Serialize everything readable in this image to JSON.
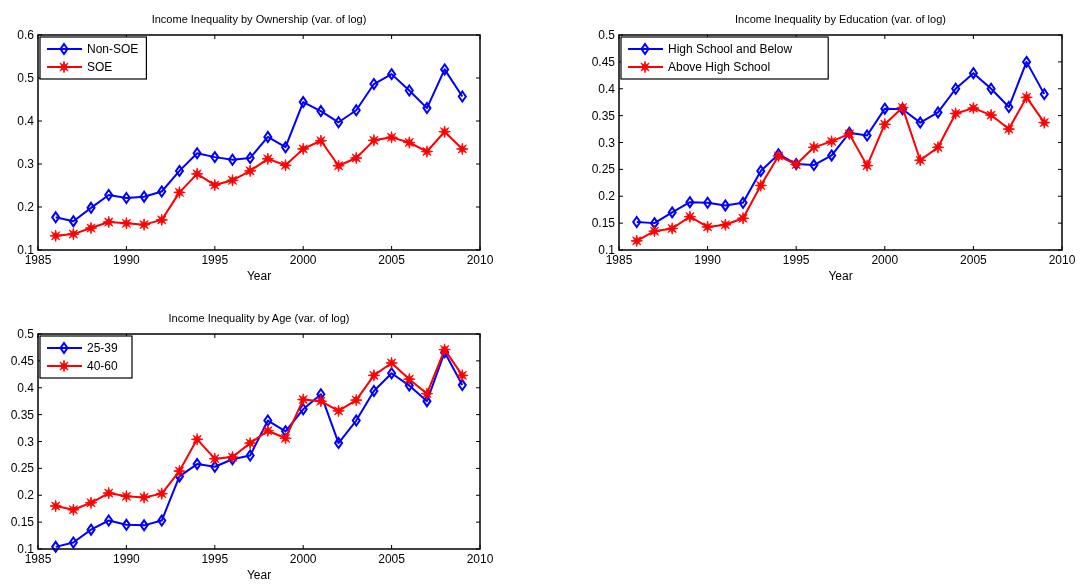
{
  "chart_data": [
    {
      "type": "line",
      "title": "Income Inequality by Ownership (var. of log)",
      "xlabel": "Year",
      "x": [
        1986,
        1987,
        1988,
        1989,
        1990,
        1991,
        1992,
        1993,
        1994,
        1995,
        1996,
        1997,
        1998,
        1999,
        2000,
        2001,
        2002,
        2003,
        2004,
        2005,
        2006,
        2007,
        2008,
        2009
      ],
      "xlim": [
        1985,
        2010
      ],
      "xticks": [
        1985,
        1990,
        1995,
        2000,
        2005,
        2010
      ],
      "ylim": [
        0.1,
        0.6
      ],
      "yticks": [
        0.1,
        0.2,
        0.3,
        0.4,
        0.5,
        0.6
      ],
      "legend": "top left",
      "series": [
        {
          "name": "Non-SOE",
          "color": "#0000ff",
          "marker": "diamond",
          "values": [
            0.176,
            0.167,
            0.198,
            0.228,
            0.221,
            0.224,
            0.236,
            0.284,
            0.325,
            0.316,
            0.31,
            0.314,
            0.363,
            0.339,
            0.444,
            0.423,
            0.397,
            0.425,
            0.486,
            0.509,
            0.471,
            0.43,
            0.52,
            0.457
          ]
        },
        {
          "name": "SOE",
          "color": "#ff0000",
          "marker": "star",
          "values": [
            0.133,
            0.137,
            0.151,
            0.165,
            0.162,
            0.159,
            0.17,
            0.234,
            0.277,
            0.251,
            0.262,
            0.284,
            0.312,
            0.297,
            0.335,
            0.354,
            0.296,
            0.314,
            0.355,
            0.362,
            0.35,
            0.329,
            0.375,
            0.335
          ]
        }
      ]
    },
    {
      "type": "line",
      "title": "Income Inequality by Education (var. of log)",
      "xlabel": "Year",
      "x": [
        1986,
        1987,
        1988,
        1989,
        1990,
        1991,
        1992,
        1993,
        1994,
        1995,
        1996,
        1997,
        1998,
        1999,
        2000,
        2001,
        2002,
        2003,
        2004,
        2005,
        2006,
        2007,
        2008,
        2009
      ],
      "xlim": [
        1985,
        2010
      ],
      "xticks": [
        1985,
        1990,
        1995,
        2000,
        2005,
        2010
      ],
      "ylim": [
        0.1,
        0.5
      ],
      "yticks": [
        0.1,
        0.15,
        0.2,
        0.25,
        0.3,
        0.35,
        0.4,
        0.45,
        0.5
      ],
      "legend": "top left",
      "series": [
        {
          "name": "High School and Below",
          "color": "#0000ff",
          "marker": "diamond",
          "values": [
            0.152,
            0.15,
            0.17,
            0.189,
            0.188,
            0.183,
            0.188,
            0.247,
            0.278,
            0.26,
            0.258,
            0.276,
            0.318,
            0.313,
            0.363,
            0.362,
            0.337,
            0.356,
            0.4,
            0.429,
            0.4,
            0.366,
            0.45,
            0.39
          ]
        },
        {
          "name": "Above High School",
          "color": "#ff0000",
          "marker": "star",
          "values": [
            0.117,
            0.135,
            0.14,
            0.162,
            0.143,
            0.147,
            0.159,
            0.22,
            0.275,
            0.259,
            0.291,
            0.302,
            0.316,
            0.257,
            0.334,
            0.365,
            0.267,
            0.291,
            0.354,
            0.364,
            0.351,
            0.325,
            0.384,
            0.337
          ]
        }
      ]
    },
    {
      "type": "line",
      "title": "Income Inequality by Age (var. of log)",
      "xlabel": "Year",
      "x": [
        1986,
        1987,
        1988,
        1989,
        1990,
        1991,
        1992,
        1993,
        1994,
        1995,
        1996,
        1997,
        1998,
        1999,
        2000,
        2001,
        2002,
        2003,
        2004,
        2005,
        2006,
        2007,
        2008,
        2009
      ],
      "xlim": [
        1985,
        2010
      ],
      "xticks": [
        1985,
        1990,
        1995,
        2000,
        2005,
        2010
      ],
      "ylim": [
        0.1,
        0.5
      ],
      "yticks": [
        0.1,
        0.15,
        0.2,
        0.25,
        0.3,
        0.35,
        0.4,
        0.45,
        0.5
      ],
      "legend": "top left",
      "series": [
        {
          "name": "25-39",
          "color": "#0000ff",
          "marker": "diamond",
          "values": [
            0.104,
            0.112,
            0.136,
            0.153,
            0.145,
            0.144,
            0.153,
            0.235,
            0.258,
            0.253,
            0.267,
            0.274,
            0.339,
            0.319,
            0.36,
            0.388,
            0.297,
            0.339,
            0.394,
            0.427,
            0.404,
            0.375,
            0.466,
            0.405
          ]
        },
        {
          "name": "40-60",
          "color": "#ff0000",
          "marker": "star",
          "values": [
            0.18,
            0.173,
            0.186,
            0.204,
            0.198,
            0.196,
            0.203,
            0.245,
            0.304,
            0.268,
            0.271,
            0.297,
            0.32,
            0.306,
            0.378,
            0.375,
            0.357,
            0.377,
            0.423,
            0.446,
            0.416,
            0.389,
            0.471,
            0.423
          ]
        }
      ]
    }
  ]
}
